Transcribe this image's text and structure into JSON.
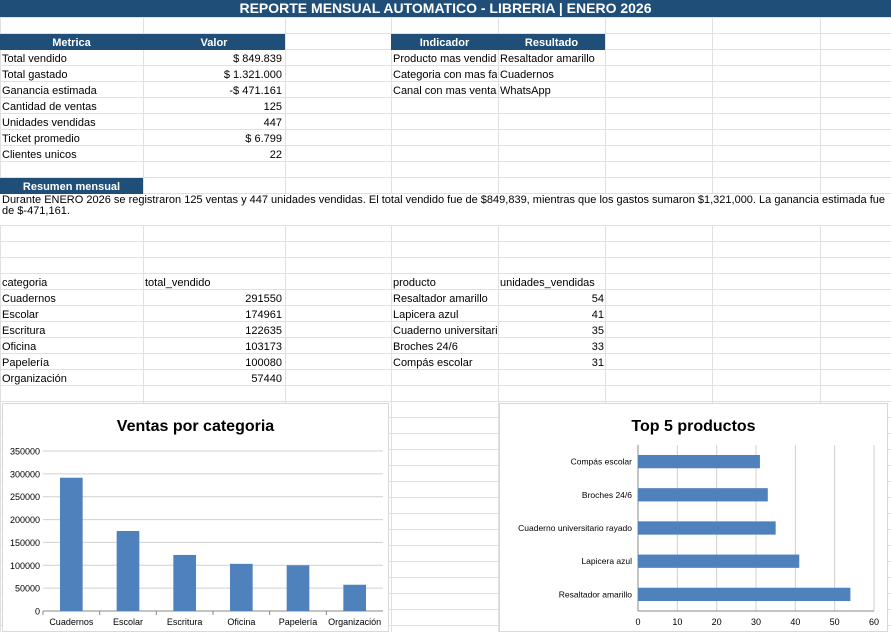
{
  "title": "REPORTE MENSUAL AUTOMATICO - LIBRERIA | ENERO 2026",
  "metrics": {
    "header_metric": "Metrica",
    "header_value": "Valor",
    "rows": [
      {
        "label": "Total vendido",
        "value": "$ 849.839"
      },
      {
        "label": "Total gastado",
        "value": "$ 1.321.000"
      },
      {
        "label": "Ganancia estimada",
        "value": "-$ 471.161"
      },
      {
        "label": "Cantidad de ventas",
        "value": "125"
      },
      {
        "label": "Unidades vendidas",
        "value": "447"
      },
      {
        "label": "Ticket promedio",
        "value": "$ 6.799"
      },
      {
        "label": "Clientes unicos",
        "value": "22"
      }
    ]
  },
  "indicators": {
    "header_indicator": "Indicador",
    "header_result": "Resultado",
    "rows": [
      {
        "label": "Producto mas vendido",
        "value": "Resaltador amarillo"
      },
      {
        "label": "Categoria con mas facturacion",
        "value": "Cuadernos"
      },
      {
        "label": "Canal con mas ventas",
        "value": "WhatsApp"
      }
    ]
  },
  "summary": {
    "header": "Resumen mensual",
    "text": "Durante ENERO 2026 se registraron 125 ventas y 447 unidades vendidas. El total vendido fue de $849,839, mientras que los gastos sumaron $1,321,000. La ganancia estimada fue de $-471,161."
  },
  "category_table": {
    "col1": "categoria",
    "col2": "total_vendido",
    "rows": [
      {
        "name": "Cuadernos",
        "value": "291550"
      },
      {
        "name": "Escolar",
        "value": "174961"
      },
      {
        "name": "Escritura",
        "value": "122635"
      },
      {
        "name": "Oficina",
        "value": "103173"
      },
      {
        "name": "Papelería",
        "value": "100080"
      },
      {
        "name": "Organización",
        "value": "57440"
      }
    ]
  },
  "product_table": {
    "col1": "producto",
    "col2": "unidades_vendidas",
    "rows": [
      {
        "name": "Resaltador amarillo",
        "value": "54"
      },
      {
        "name": "Lapicera azul",
        "value": "41"
      },
      {
        "name": "Cuaderno universitario rayado",
        "value": "35"
      },
      {
        "name": "Broches 24/6",
        "value": "33"
      },
      {
        "name": "Compás escolar",
        "value": "31"
      }
    ]
  },
  "colors": {
    "header": "#1f4e79",
    "bar": "#4f81bd",
    "grid": "#d9d9d9"
  },
  "chart_data": [
    {
      "type": "bar",
      "title": "Ventas por categoria",
      "categories": [
        "Cuadernos",
        "Escolar",
        "Escritura",
        "Oficina",
        "Papelería",
        "Organización"
      ],
      "values": [
        291550,
        174961,
        122635,
        103173,
        100080,
        57440
      ],
      "ylim": [
        0,
        350000
      ],
      "yticks": [
        "0",
        "50000",
        "100000",
        "150000",
        "200000",
        "250000",
        "300000",
        "350000"
      ],
      "grid": true
    },
    {
      "type": "bar",
      "orientation": "horizontal",
      "title": "Top 5 productos",
      "categories": [
        "Compás escolar",
        "Broches 24/6",
        "Cuaderno universitario rayado",
        "Lapicera azul",
        "Resaltador amarillo"
      ],
      "values": [
        31,
        33,
        35,
        41,
        54
      ],
      "xlim": [
        0,
        60
      ],
      "xticks": [
        "0",
        "10",
        "20",
        "30",
        "40",
        "50",
        "60"
      ],
      "grid": true
    }
  ]
}
